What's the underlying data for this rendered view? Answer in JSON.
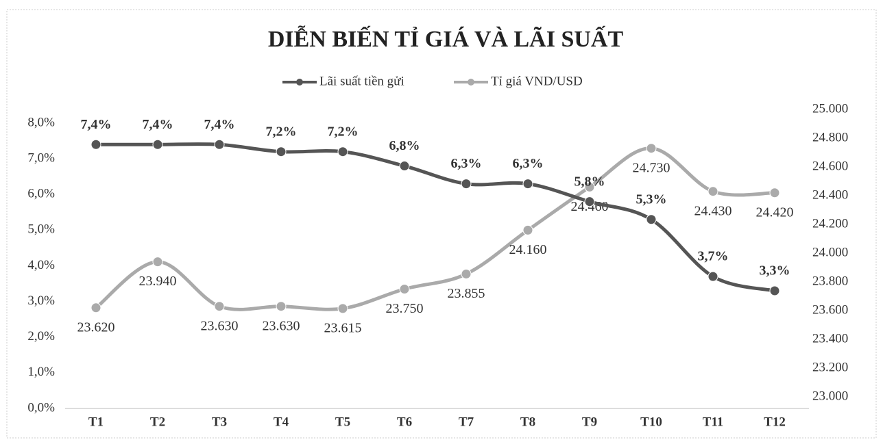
{
  "chart_data": {
    "type": "line",
    "title": "DIỄN BIẾN TỈ GIÁ VÀ LÃI SUẤT",
    "categories": [
      "T1",
      "T2",
      "T3",
      "T4",
      "T5",
      "T6",
      "T7",
      "T8",
      "T9",
      "T10",
      "T11",
      "T12"
    ],
    "series": [
      {
        "name": "Lãi suất tiền gửi",
        "color": "#555555",
        "axis": "y",
        "values": [
          7.4,
          7.4,
          7.4,
          7.2,
          7.2,
          6.8,
          6.3,
          6.3,
          5.8,
          5.3,
          3.7,
          3.3
        ],
        "value_labels": [
          "7,4%",
          "7,4%",
          "7,4%",
          "7,2%",
          "7,2%",
          "6,8%",
          "6,3%",
          "6,3%",
          "5,8%",
          "5,3%",
          "3,7%",
          "3,3%"
        ]
      },
      {
        "name": "Tỉ giá VND/USD",
        "color": "#aaaaaa",
        "axis": "y2",
        "values": [
          23620,
          23940,
          23630,
          23630,
          23615,
          23750,
          23855,
          24160,
          24460,
          24730,
          24430,
          24420
        ],
        "value_labels": [
          "23.620",
          "23.940",
          "23.630",
          "23.630",
          "23.615",
          "23.750",
          "23.855",
          "24.160",
          "24.460",
          "24.730",
          "24.430",
          "24.420"
        ]
      }
    ],
    "ylim": [
      0,
      8
    ],
    "yticks": [
      {
        "value": 0,
        "label": "0,0%"
      },
      {
        "value": 1,
        "label": "1,0%"
      },
      {
        "value": 2,
        "label": "2,0%"
      },
      {
        "value": 3,
        "label": "3,0%"
      },
      {
        "value": 4,
        "label": "4,0%"
      },
      {
        "value": 5,
        "label": "5,0%"
      },
      {
        "value": 6,
        "label": "6,0%"
      },
      {
        "value": 7,
        "label": "7,0%"
      },
      {
        "value": 8,
        "label": "8,0%"
      }
    ],
    "y2lim": [
      23000,
      25000
    ],
    "y2ticks": [
      {
        "value": 23000,
        "label": "23.000"
      },
      {
        "value": 23200,
        "label": "23.200"
      },
      {
        "value": 23400,
        "label": "23.400"
      },
      {
        "value": 23600,
        "label": "23.600"
      },
      {
        "value": 23800,
        "label": "23.800"
      },
      {
        "value": 24000,
        "label": "24.000"
      },
      {
        "value": 24200,
        "label": "24.200"
      },
      {
        "value": 24400,
        "label": "24.400"
      },
      {
        "value": 24600,
        "label": "24.600"
      },
      {
        "value": 24800,
        "label": "24.800"
      },
      {
        "value": 25000,
        "label": "25.000"
      }
    ],
    "legend": "top"
  }
}
